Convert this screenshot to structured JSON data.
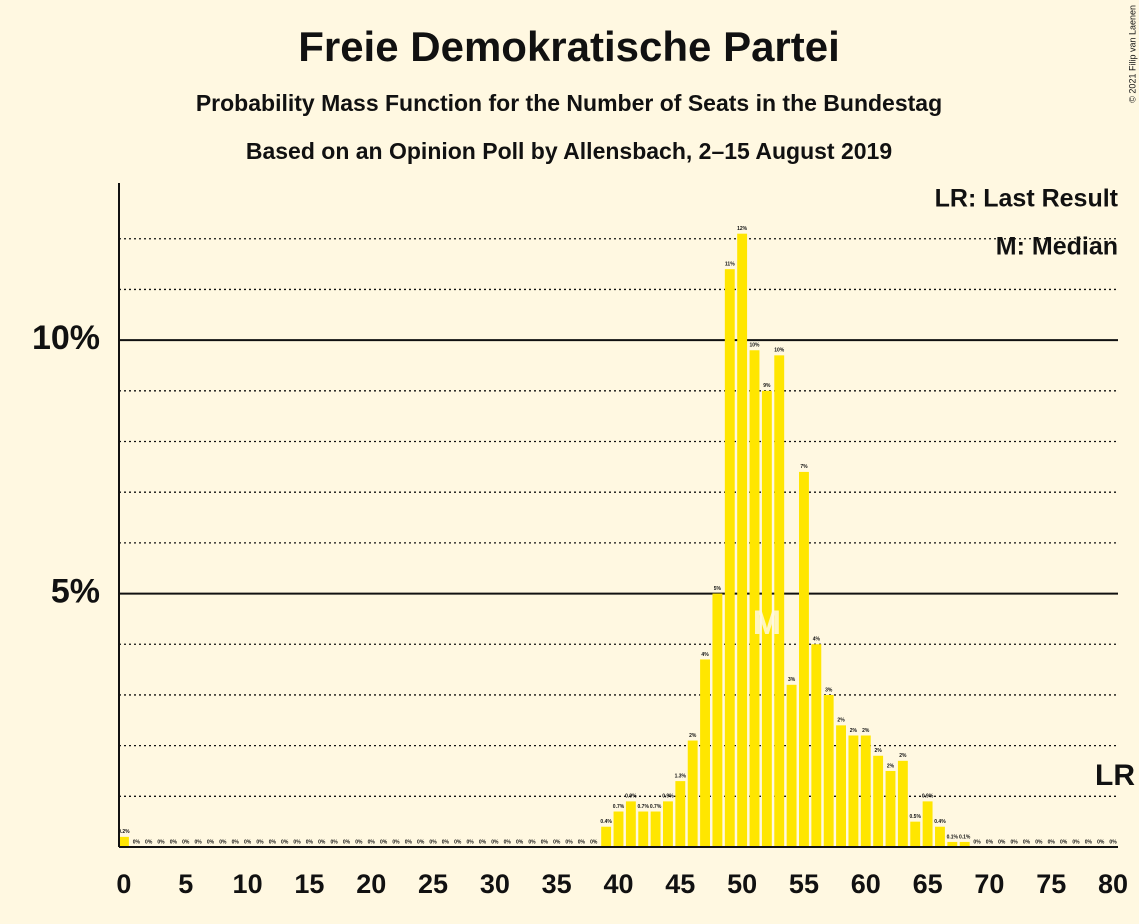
{
  "chart_data": {
    "type": "bar",
    "title": "Freie Demokratische Partei",
    "subtitle": "Probability Mass Function for the Number of Seats in the Bundestag",
    "subtitle2": "Based on an Opinion Poll by Allensbach, 2–15 August 2019",
    "credit": "© 2021 Filip van Laenen",
    "legend": [
      "LR: Last Result",
      "M: Median"
    ],
    "last_result": {
      "seats": 80,
      "label": "LR"
    },
    "median": {
      "seats": 52,
      "label": "M"
    },
    "color": "#ffe600",
    "x": [
      0,
      1,
      2,
      3,
      4,
      5,
      6,
      7,
      8,
      9,
      10,
      11,
      12,
      13,
      14,
      15,
      16,
      17,
      18,
      19,
      20,
      21,
      22,
      23,
      24,
      25,
      26,
      27,
      28,
      29,
      30,
      31,
      32,
      33,
      34,
      35,
      36,
      37,
      38,
      39,
      40,
      41,
      42,
      43,
      44,
      45,
      46,
      47,
      48,
      49,
      50,
      51,
      52,
      53,
      54,
      55,
      56,
      57,
      58,
      59,
      60,
      61,
      62,
      63,
      64,
      65,
      66,
      67,
      68,
      69,
      70,
      71,
      72,
      73,
      74,
      75,
      76,
      77,
      78,
      79,
      80
    ],
    "values": [
      0.2,
      0,
      0,
      0,
      0,
      0,
      0,
      0,
      0,
      0,
      0,
      0,
      0,
      0,
      0,
      0,
      0,
      0,
      0,
      0,
      0,
      0,
      0,
      0,
      0,
      0,
      0,
      0,
      0,
      0,
      0,
      0,
      0,
      0,
      0,
      0,
      0,
      0,
      0,
      0.4,
      0.7,
      0.9,
      0.7,
      0.7,
      0.9,
      1.3,
      2.1,
      3.7,
      5.0,
      11.4,
      12.1,
      9.8,
      9.0,
      9.7,
      3.2,
      7.4,
      4.0,
      3.0,
      2.4,
      2.2,
      2.2,
      1.8,
      1.5,
      1.7,
      0.5,
      0.9,
      0.4,
      0.1,
      0.1,
      0,
      0,
      0,
      0,
      0,
      0,
      0,
      0,
      0,
      0,
      0,
      0
    ],
    "value_labels": [
      "0.2%",
      "0%",
      "0%",
      "0%",
      "0%",
      "0%",
      "0%",
      "0%",
      "0%",
      "0%",
      "0%",
      "0%",
      "0%",
      "0%",
      "0%",
      "0%",
      "0%",
      "0%",
      "0%",
      "0%",
      "0%",
      "0%",
      "0%",
      "0%",
      "0%",
      "0%",
      "0%",
      "0%",
      "0%",
      "0%",
      "0%",
      "0%",
      "0%",
      "0%",
      "0%",
      "0%",
      "0%",
      "0%",
      "0%",
      "0.4%",
      "0.7%",
      "0.9%",
      "0.7%",
      "0.7%",
      "0.9%",
      "1.3%",
      "2%",
      "4%",
      "5%",
      "11%",
      "12%",
      "10%",
      "9%",
      "10%",
      "3%",
      "7%",
      "4%",
      "3%",
      "2%",
      "2%",
      "2%",
      "2%",
      "2%",
      "2%",
      "0.5%",
      "0.9%",
      "0.4%",
      "0.1%",
      "0.1%",
      "0%",
      "0%",
      "0%",
      "0%",
      "0%",
      "0%",
      "0%",
      "0%",
      "0%",
      "0%",
      "0%",
      "0%"
    ],
    "xlim": [
      -0.4,
      80.4
    ],
    "xticks": [
      0,
      5,
      10,
      15,
      20,
      25,
      30,
      35,
      40,
      45,
      50,
      55,
      60,
      65,
      70,
      75,
      80
    ],
    "ylim": [
      0,
      13.1
    ],
    "yticks": [
      {
        "value": 5,
        "label": "5%"
      },
      {
        "value": 10,
        "label": "10%"
      }
    ],
    "minor_grid": [
      1,
      2,
      3,
      4,
      6,
      7,
      8,
      9,
      11,
      12
    ]
  }
}
